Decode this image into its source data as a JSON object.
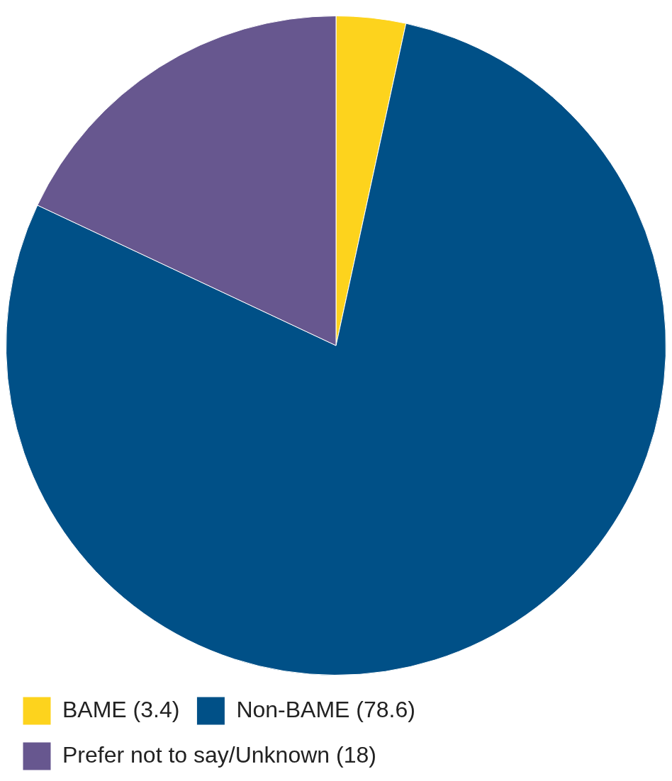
{
  "chart_data": {
    "type": "pie",
    "categories": [
      "BAME (3.4)",
      "Non-BAME (78.6)",
      "Prefer not to say/Unknown (18)"
    ],
    "values": [
      3.4,
      78.6,
      18
    ],
    "colors": [
      "#fdd31d",
      "#005087",
      "#67578f"
    ],
    "legend": "bottom"
  }
}
